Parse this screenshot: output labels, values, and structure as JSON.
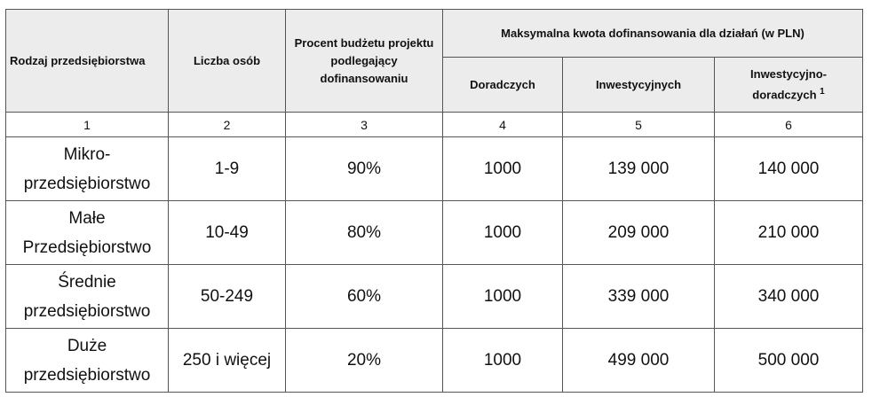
{
  "headers": {
    "rodzaj": "Rodzaj przedsiębiorstwa",
    "liczba": "Liczba osób",
    "procent": "Procent budżetu projektu podlegający dofinansowaniu",
    "max_kwota": "Maksymalna kwota dofinansowania dla działań (w PLN)",
    "doradczych": "Doradczych",
    "inwestycyjnych": "Inwestycyjnych",
    "inwestycyjno_doradczych": "Inwestycyjno-doradczych",
    "footnote_mark": "1"
  },
  "column_numbers": [
    "1",
    "2",
    "3",
    "4",
    "5",
    "6"
  ],
  "rows": [
    {
      "rodzaj": "Mikro-przedsiębiorstwo",
      "liczba": "1-9",
      "procent": "90%",
      "doradczych": "1000",
      "inwestycyjnych": "139 000",
      "inwestycyjno_doradczych": "140 000"
    },
    {
      "rodzaj": "Małe Przedsiębiorstwo",
      "liczba": "10-49",
      "procent": "80%",
      "doradczych": "1000",
      "inwestycyjnych": "209 000",
      "inwestycyjno_doradczych": "210 000"
    },
    {
      "rodzaj": "Średnie przedsiębiorstwo",
      "liczba": "50-249",
      "procent": "60%",
      "doradczych": "1000",
      "inwestycyjnych": "339 000",
      "inwestycyjno_doradczych": "340 000"
    },
    {
      "rodzaj": "Duże przedsiębiorstwo",
      "liczba": "250 i więcej",
      "procent": "20%",
      "doradczych": "1000",
      "inwestycyjnych": "499 000",
      "inwestycyjno_doradczych": "500 000"
    }
  ]
}
